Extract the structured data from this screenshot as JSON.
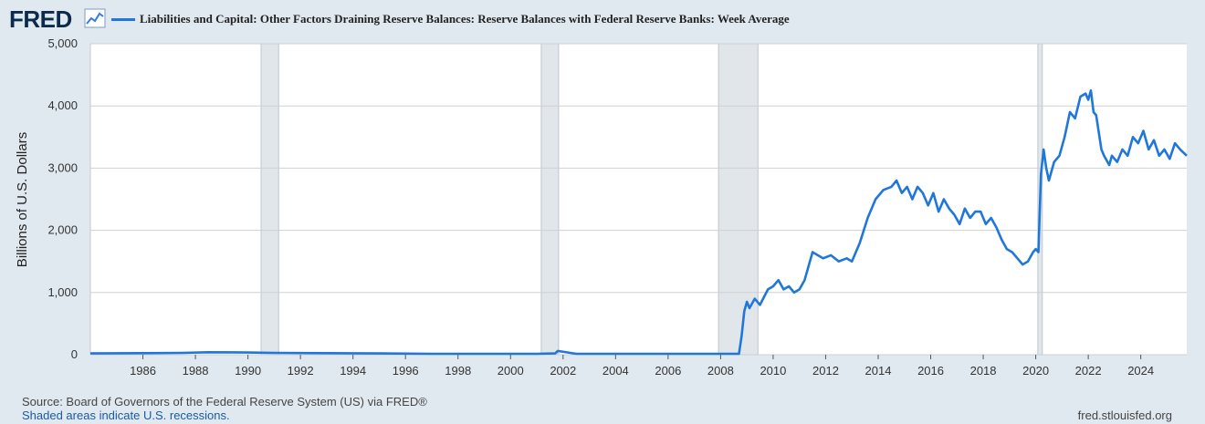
{
  "header": {
    "logo_text": "FRED",
    "logo_icon": "trend-line-icon",
    "title": "Liabilities and Capital: Other Factors Draining Reserve Balances: Reserve Balances with Federal Reserve Banks: Week Average"
  },
  "colors": {
    "series": "#1f77d9",
    "recession_shade": "#e1e6eb",
    "background": "#e1e9f0",
    "plot_background": "#ffffff",
    "grid": "#d0d0d0"
  },
  "chart_data": {
    "type": "line",
    "title": "Liabilities and Capital: Other Factors Draining Reserve Balances: Reserve Balances with Federal Reserve Banks: Week Average",
    "ylabel": "Billions of U.S. Dollars",
    "xlabel": "",
    "xlim": [
      1984.0,
      2025.75
    ],
    "ylim": [
      0,
      5000
    ],
    "y_ticks": [
      {
        "value": 0,
        "label": "0"
      },
      {
        "value": 1000,
        "label": "1,000"
      },
      {
        "value": 2000,
        "label": "2,000"
      },
      {
        "value": 3000,
        "label": "3,000"
      },
      {
        "value": 4000,
        "label": "4,000"
      },
      {
        "value": 5000,
        "label": "5,000"
      }
    ],
    "x_ticks": [
      {
        "value": 1986,
        "label": "1986"
      },
      {
        "value": 1988,
        "label": "1988"
      },
      {
        "value": 1990,
        "label": "1990"
      },
      {
        "value": 1992,
        "label": "1992"
      },
      {
        "value": 1994,
        "label": "1994"
      },
      {
        "value": 1996,
        "label": "1996"
      },
      {
        "value": 1998,
        "label": "1998"
      },
      {
        "value": 2000,
        "label": "2000"
      },
      {
        "value": 2002,
        "label": "2002"
      },
      {
        "value": 2004,
        "label": "2004"
      },
      {
        "value": 2006,
        "label": "2006"
      },
      {
        "value": 2008,
        "label": "2008"
      },
      {
        "value": 2010,
        "label": "2010"
      },
      {
        "value": 2012,
        "label": "2012"
      },
      {
        "value": 2014,
        "label": "2014"
      },
      {
        "value": 2016,
        "label": "2016"
      },
      {
        "value": 2018,
        "label": "2018"
      },
      {
        "value": 2020,
        "label": "2020"
      },
      {
        "value": 2022,
        "label": "2022"
      },
      {
        "value": 2024,
        "label": "2024"
      }
    ],
    "recessions": [
      {
        "start": 1990.5,
        "end": 1991.17
      },
      {
        "start": 2001.17,
        "end": 2001.83
      },
      {
        "start": 2007.92,
        "end": 2009.42
      },
      {
        "start": 2020.08,
        "end": 2020.25
      }
    ],
    "grid": true,
    "legend": "top-left",
    "series": [
      {
        "name": "Liabilities and Capital: Other Factors Draining Reserve Balances: Reserve Balances with Federal Reserve Banks: Week Average",
        "x": [
          1984.0,
          1986.0,
          1987.5,
          1988.5,
          1990.0,
          1991.0,
          1993.0,
          1995.0,
          1997.0,
          1999.0,
          2001.0,
          2001.7,
          2001.8,
          2002.5,
          2005.0,
          2007.5,
          2008.7,
          2008.8,
          2008.9,
          2009.0,
          2009.1,
          2009.3,
          2009.5,
          2009.8,
          2010.0,
          2010.2,
          2010.4,
          2010.6,
          2010.8,
          2011.0,
          2011.2,
          2011.4,
          2011.5,
          2011.7,
          2011.9,
          2012.2,
          2012.5,
          2012.8,
          2013.0,
          2013.3,
          2013.6,
          2013.9,
          2014.2,
          2014.5,
          2014.7,
          2014.9,
          2015.1,
          2015.3,
          2015.5,
          2015.7,
          2015.9,
          2016.1,
          2016.3,
          2016.5,
          2016.7,
          2016.9,
          2017.1,
          2017.3,
          2017.5,
          2017.7,
          2017.9,
          2018.1,
          2018.3,
          2018.5,
          2018.7,
          2018.9,
          2019.1,
          2019.3,
          2019.5,
          2019.7,
          2019.9,
          2020.0,
          2020.1,
          2020.2,
          2020.3,
          2020.4,
          2020.5,
          2020.7,
          2020.9,
          2021.1,
          2021.3,
          2021.5,
          2021.7,
          2021.9,
          2022.0,
          2022.1,
          2022.2,
          2022.3,
          2022.5,
          2022.6,
          2022.8,
          2022.9,
          2023.1,
          2023.3,
          2023.5,
          2023.7,
          2023.9,
          2024.1,
          2024.3,
          2024.5,
          2024.7,
          2024.9,
          2025.1,
          2025.3,
          2025.5,
          2025.75
        ],
        "y": [
          20,
          25,
          30,
          40,
          35,
          30,
          25,
          20,
          15,
          15,
          15,
          20,
          60,
          15,
          15,
          15,
          15,
          300,
          700,
          850,
          750,
          900,
          800,
          1050,
          1100,
          1200,
          1050,
          1100,
          1000,
          1050,
          1200,
          1500,
          1650,
          1600,
          1550,
          1600,
          1500,
          1550,
          1500,
          1800,
          2200,
          2500,
          2650,
          2700,
          2800,
          2600,
          2700,
          2500,
          2700,
          2600,
          2400,
          2600,
          2300,
          2500,
          2350,
          2250,
          2100,
          2350,
          2200,
          2300,
          2300,
          2100,
          2200,
          2050,
          1850,
          1700,
          1650,
          1550,
          1450,
          1500,
          1650,
          1700,
          1650,
          2900,
          3300,
          3000,
          2800,
          3100,
          3200,
          3500,
          3900,
          3800,
          4150,
          4200,
          4100,
          4250,
          3900,
          3850,
          3300,
          3200,
          3050,
          3200,
          3100,
          3300,
          3200,
          3500,
          3400,
          3600,
          3300,
          3450,
          3200,
          3300,
          3150,
          3400,
          3300,
          3200
        ]
      }
    ]
  },
  "footer": {
    "source": "Source: Board of Governors of the Federal Reserve System (US) via FRED®",
    "note": "Shaded areas indicate U.S. recessions.",
    "url": "fred.stlouisfed.org"
  }
}
